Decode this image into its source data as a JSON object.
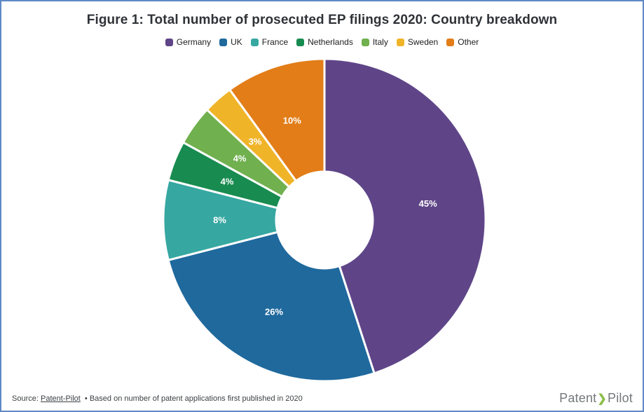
{
  "page": {
    "background": "#ffffff",
    "border_color": "#5e89c6"
  },
  "header": {
    "title": "Figure 1: Total number of prosecuted EP filings 2020: Country breakdown"
  },
  "chart_data": {
    "type": "pie",
    "subtype": "donut",
    "title": "Figure 1: Total number of prosecuted EP filings 2020: Country breakdown",
    "categories": [
      "Germany",
      "UK",
      "France",
      "Netherlands",
      "Italy",
      "Sweden",
      "Other"
    ],
    "values": [
      45,
      26,
      8,
      4,
      4,
      3,
      10
    ],
    "unit": "%",
    "data_labels": [
      "45%",
      "26%",
      "8%",
      "4%",
      "4%",
      "3%",
      "10%"
    ],
    "colors": [
      "#5f4588",
      "#1f699d",
      "#36a7a1",
      "#188b50",
      "#70b04e",
      "#f0b429",
      "#e27d18"
    ],
    "start_angle_deg": 0,
    "direction": "clockwise",
    "inner_radius_ratio": 0.3,
    "label_color": "#ffffff",
    "legend_position": "top"
  },
  "footer": {
    "source_label": "Source:",
    "source_link_text": "Patent-Pilot",
    "note_text": "• Based on number of patent applications first published in 2020",
    "logo_text_1": "Patent",
    "logo_chevron": "❯",
    "logo_text_2": "Pilot"
  }
}
